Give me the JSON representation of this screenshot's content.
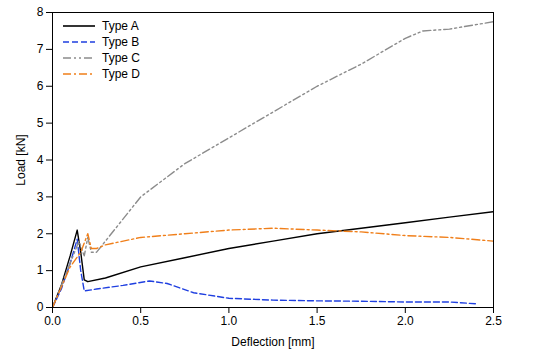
{
  "chart_data": {
    "type": "line",
    "x_label": "Deflection [mm]",
    "y_label": "Load [kN]",
    "xlim": [
      0,
      2.5
    ],
    "xticks": [
      {
        "value": 0,
        "label": "0.0"
      },
      0.5,
      {
        "value": 1,
        "label": "1.0"
      },
      1.5,
      {
        "value": 2,
        "label": "2.0"
      },
      2.5
    ],
    "ylim": [
      0,
      8
    ],
    "yticks": [
      0,
      1,
      2,
      3,
      4,
      5,
      6,
      7,
      8
    ],
    "grid": false,
    "legend": "top-left",
    "series": [
      {
        "name": "Type A",
        "color": "#000000",
        "line_style": "solid",
        "x": [
          0,
          0.05,
          0.1,
          0.14,
          0.16,
          0.18,
          0.2,
          0.3,
          0.5,
          0.75,
          1.0,
          1.25,
          1.5,
          1.75,
          2.0,
          2.25,
          2.5
        ],
        "values": [
          0,
          0.6,
          1.4,
          2.1,
          1.5,
          0.75,
          0.7,
          0.8,
          1.1,
          1.35,
          1.6,
          1.8,
          2.0,
          2.15,
          2.3,
          2.45,
          2.6
        ]
      },
      {
        "name": "Type B",
        "color": "#1f3fe0",
        "line_style": "dashed",
        "x": [
          0,
          0.05,
          0.1,
          0.14,
          0.16,
          0.18,
          0.25,
          0.4,
          0.55,
          0.65,
          0.8,
          1.0,
          1.25,
          1.5,
          1.75,
          2.0,
          2.25,
          2.4
        ],
        "values": [
          0,
          0.5,
          1.2,
          1.85,
          1.0,
          0.45,
          0.5,
          0.6,
          0.72,
          0.65,
          0.4,
          0.25,
          0.2,
          0.18,
          0.17,
          0.15,
          0.15,
          0.1
        ]
      },
      {
        "name": "Type C",
        "color": "#8c8c8c",
        "line_style": "dashdotdot",
        "x": [
          0,
          0.1,
          0.15,
          0.18,
          0.2,
          0.22,
          0.25,
          0.3,
          0.5,
          0.75,
          1.0,
          1.25,
          1.5,
          1.75,
          2.0,
          2.1,
          2.25,
          2.5
        ],
        "values": [
          0,
          1.2,
          1.8,
          1.4,
          1.9,
          1.5,
          1.5,
          1.8,
          3.0,
          3.9,
          4.6,
          5.3,
          6.0,
          6.6,
          7.3,
          7.5,
          7.55,
          7.75
        ]
      },
      {
        "name": "Type D",
        "color": "#f07f1a",
        "line_style": "dashdot",
        "x": [
          0,
          0.1,
          0.16,
          0.2,
          0.22,
          0.25,
          0.3,
          0.5,
          0.75,
          1.0,
          1.25,
          1.5,
          1.75,
          2.0,
          2.25,
          2.5
        ],
        "values": [
          0,
          1.1,
          1.5,
          2.0,
          1.6,
          1.6,
          1.7,
          1.9,
          2.0,
          2.1,
          2.15,
          2.1,
          2.05,
          1.95,
          1.9,
          1.8
        ]
      }
    ]
  }
}
